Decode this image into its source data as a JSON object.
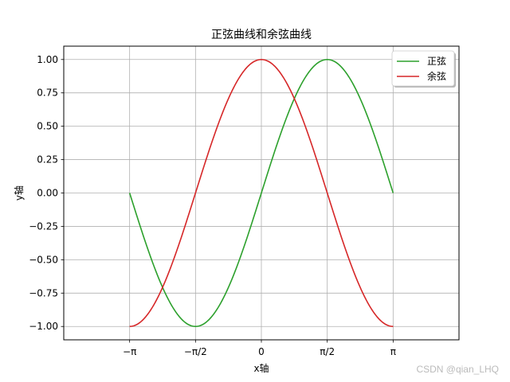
{
  "chart_data": {
    "type": "line",
    "title": "正弦曲线和余弦曲线",
    "xlabel": "x轴",
    "ylabel": "y轴",
    "xlim": [
      -4.712389,
      4.712389
    ],
    "ylim": [
      -1.1,
      1.1
    ],
    "x_range": [
      -3.141593,
      3.141593
    ],
    "grid": true,
    "legend_position": "top-right",
    "x_ticks": [
      {
        "value": -3.141593,
        "label": "−π"
      },
      {
        "value": -1.570796,
        "label": "−π/2"
      },
      {
        "value": 0,
        "label": "0"
      },
      {
        "value": 1.570796,
        "label": "π/2"
      },
      {
        "value": 3.141593,
        "label": "π"
      }
    ],
    "y_ticks": [
      {
        "value": 1.0,
        "label": "1.00"
      },
      {
        "value": 0.75,
        "label": "0.75"
      },
      {
        "value": 0.5,
        "label": "0.50"
      },
      {
        "value": 0.25,
        "label": "0.25"
      },
      {
        "value": 0.0,
        "label": "0.00"
      },
      {
        "value": -0.25,
        "label": "−0.25"
      },
      {
        "value": -0.5,
        "label": "−0.50"
      },
      {
        "value": -0.75,
        "label": "−0.75"
      },
      {
        "value": -1.0,
        "label": "−1.00"
      }
    ],
    "series": [
      {
        "name": "正弦",
        "function": "sin",
        "color": "#2ca02c",
        "x": [
          -3.1416,
          -2.7489,
          -2.3562,
          -1.9635,
          -1.5708,
          -1.1781,
          -0.7854,
          -0.3927,
          0,
          0.3927,
          0.7854,
          1.1781,
          1.5708,
          1.9635,
          2.3562,
          2.7489,
          3.1416
        ],
        "y": [
          0,
          -0.383,
          -0.707,
          -0.924,
          -1.0,
          -0.924,
          -0.707,
          -0.383,
          0,
          0.383,
          0.707,
          0.924,
          1.0,
          0.924,
          0.707,
          0.383,
          0
        ]
      },
      {
        "name": "余弦",
        "function": "cos",
        "color": "#d62728",
        "x": [
          -3.1416,
          -2.7489,
          -2.3562,
          -1.9635,
          -1.5708,
          -1.1781,
          -0.7854,
          -0.3927,
          0,
          0.3927,
          0.7854,
          1.1781,
          1.5708,
          1.9635,
          2.3562,
          2.7489,
          3.1416
        ],
        "y": [
          -1.0,
          -0.924,
          -0.707,
          -0.383,
          0,
          0.383,
          0.707,
          0.924,
          1.0,
          0.924,
          0.707,
          0.383,
          0,
          -0.383,
          -0.707,
          -0.924,
          -1.0
        ]
      }
    ]
  },
  "watermark": "CSDN @qian_LHQ"
}
